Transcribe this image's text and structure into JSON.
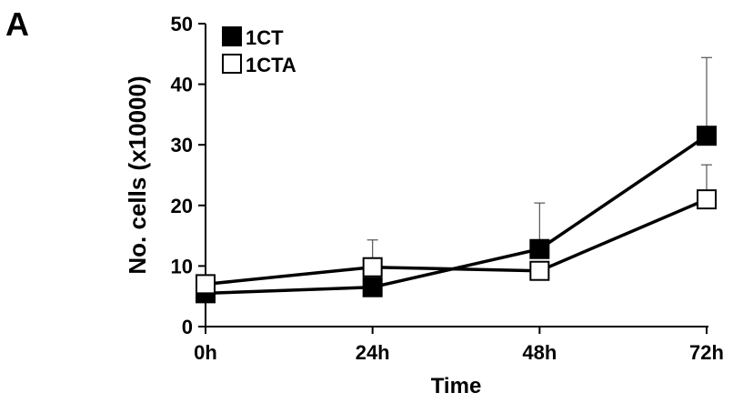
{
  "panel_label": "A",
  "chart_data": {
    "type": "line",
    "title": "",
    "xlabel": "Time",
    "ylabel": "No. cells (x10000)",
    "categories": [
      "0h",
      "24h",
      "48h",
      "72h"
    ],
    "ylim": [
      0,
      50
    ],
    "yticks": [
      0,
      10,
      20,
      30,
      40,
      50
    ],
    "grid": false,
    "legend_position": "top-left",
    "series": [
      {
        "name": "1CT",
        "marker": "filled-square",
        "color": "#000000",
        "values": [
          5.5,
          6.5,
          12.8,
          31.5
        ],
        "error_upper": [
          0.5,
          0.5,
          7.6,
          12.9
        ]
      },
      {
        "name": "1CTA",
        "marker": "open-square",
        "color": "#000000",
        "values": [
          7.0,
          9.8,
          9.2,
          21.0
        ],
        "error_upper": [
          1.5,
          4.5,
          1.2,
          5.7
        ]
      }
    ]
  }
}
